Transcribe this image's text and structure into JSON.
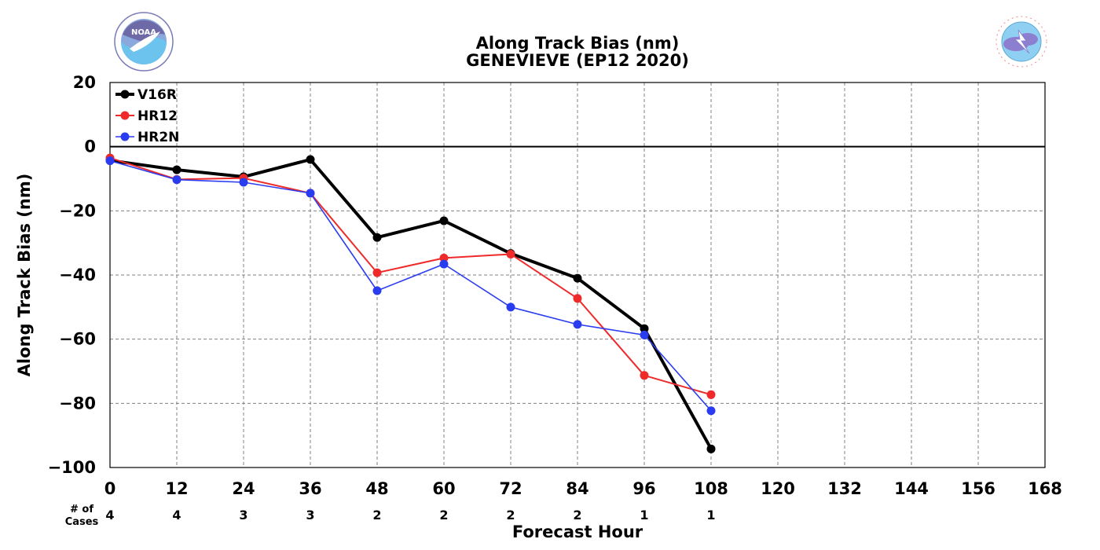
{
  "chart_data": {
    "type": "line",
    "title": "Along Track Bias (nm)",
    "subtitle": "GENEVIEVE (EP12 2020)",
    "xlabel": "Forecast Hour",
    "ylabel": "Along Track Bias (nm)",
    "xlim": [
      0,
      168
    ],
    "ylim": [
      -100,
      20
    ],
    "xticks": [
      0,
      12,
      24,
      36,
      48,
      60,
      72,
      84,
      96,
      108,
      120,
      132,
      144,
      156,
      168
    ],
    "yticks": [
      20,
      0,
      -20,
      -40,
      -60,
      -80,
      -100
    ],
    "ytick_labels": [
      "20",
      "0",
      "−20",
      "−40",
      "−60",
      "−80",
      "−100"
    ],
    "grid": true,
    "legend_position": "top-left",
    "series": [
      {
        "name": "V16R",
        "color": "#000000",
        "x": [
          0,
          12,
          24,
          36,
          48,
          60,
          72,
          84,
          96,
          108
        ],
        "values": [
          -4.3,
          -7.2,
          -9.4,
          -4.0,
          -28.3,
          -23.1,
          -33.3,
          -41.0,
          -56.7,
          -94.2
        ]
      },
      {
        "name": "HR12",
        "color": "#ee2a2a",
        "x": [
          0,
          12,
          24,
          36,
          48,
          60,
          72,
          84,
          96,
          108
        ],
        "values": [
          -3.5,
          -10.2,
          -9.8,
          -14.5,
          -39.3,
          -34.7,
          -33.5,
          -47.3,
          -71.3,
          -77.3
        ]
      },
      {
        "name": "HR2N",
        "color": "#2a3cf0",
        "x": [
          0,
          12,
          24,
          36,
          48,
          60,
          72,
          84,
          96,
          108
        ],
        "values": [
          -4.4,
          -10.3,
          -11.1,
          -14.5,
          -44.9,
          -36.6,
          -50.0,
          -55.4,
          -58.7,
          -82.3
        ]
      }
    ],
    "cases_label_line1": "# of",
    "cases_label_line2": "Cases",
    "cases": {
      "x": [
        0,
        12,
        24,
        36,
        48,
        60,
        72,
        84,
        96,
        108
      ],
      "counts": [
        "4",
        "4",
        "3",
        "3",
        "2",
        "2",
        "2",
        "2",
        "1",
        "1"
      ]
    }
  },
  "logos": {
    "left": {
      "name": "noaa-logo",
      "text": "NOAA"
    },
    "right": {
      "name": "nws-logo",
      "text": "NATIONAL WEATHER SERVICE"
    }
  }
}
